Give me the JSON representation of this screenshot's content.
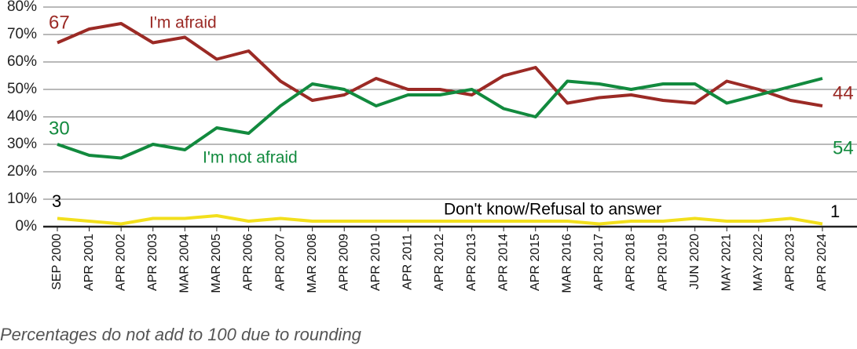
{
  "chart_data": {
    "type": "line",
    "categories": [
      "SEP 2000",
      "APR 2001",
      "APR 2002",
      "APR 2003",
      "MAR 2004",
      "MAR 2005",
      "APR 2006",
      "APR 2007",
      "MAR 2008",
      "APR 2009",
      "APR 2010",
      "APR 2011",
      "APR 2012",
      "APR 2013",
      "APR 2014",
      "APR 2015",
      "MAR 2016",
      "APR 2017",
      "APR 2018",
      "APR 2019",
      "JUN 2020",
      "MAY 2021",
      "MAY 2022",
      "APR 2023",
      "APR 2024"
    ],
    "series": [
      {
        "name": "I'm afraid",
        "color": "#9b2a25",
        "values": [
          67,
          72,
          74,
          67,
          69,
          61,
          64,
          53,
          46,
          48,
          54,
          50,
          50,
          48,
          55,
          58,
          45,
          47,
          48,
          46,
          45,
          53,
          50,
          46,
          44
        ]
      },
      {
        "name": "I'm not afraid",
        "color": "#128a3e",
        "values": [
          30,
          26,
          25,
          30,
          28,
          36,
          34,
          44,
          52,
          50,
          44,
          48,
          48,
          50,
          43,
          40,
          53,
          52,
          50,
          52,
          52,
          45,
          48,
          51,
          54
        ]
      },
      {
        "name": "Don't know/Refusal to answer",
        "color": "#f2df1c",
        "values": [
          3,
          2,
          1,
          3,
          3,
          4,
          2,
          3,
          2,
          2,
          2,
          2,
          2,
          2,
          2,
          2,
          2,
          1,
          2,
          2,
          3,
          2,
          2,
          3,
          1
        ]
      }
    ],
    "ylim": [
      0,
      80
    ],
    "yticks": [
      {
        "value": 0,
        "label": "0%"
      },
      {
        "value": 10,
        "label": "10%"
      },
      {
        "value": 20,
        "label": "20%"
      },
      {
        "value": 30,
        "label": "30%"
      },
      {
        "value": 40,
        "label": "40%"
      },
      {
        "value": 50,
        "label": "50%"
      },
      {
        "value": 60,
        "label": "60%"
      },
      {
        "value": 70,
        "label": "70%"
      },
      {
        "value": 80,
        "label": "80%"
      }
    ],
    "grid": true,
    "note": "Percentages do not add to 100 due to rounding"
  }
}
